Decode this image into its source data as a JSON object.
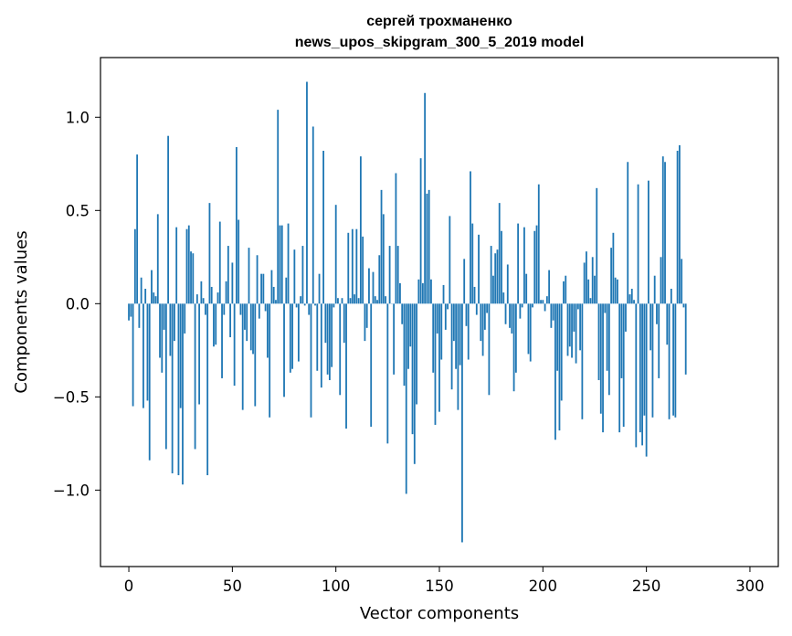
{
  "chart_data": {
    "type": "bar",
    "title_line1": "сергей трохманенко",
    "title_line2": "news_upos_skipgram_300_5_2019 model",
    "xlabel": "Vector components",
    "ylabel": "Components values",
    "xlim": [
      -13.7,
      313.7
    ],
    "ylim": [
      -1.41,
      1.32
    ],
    "x_ticks": [
      0,
      50,
      100,
      150,
      200,
      250,
      300
    ],
    "x_tick_labels": [
      "0",
      "50",
      "100",
      "150",
      "200",
      "250",
      "300"
    ],
    "y_ticks": [
      -1.0,
      -0.5,
      0.0,
      0.5,
      1.0
    ],
    "y_tick_labels": [
      "−1.0",
      "−0.5",
      "0.0",
      "0.5",
      "1.0"
    ],
    "bar_color": "#1f77b4",
    "grid": false,
    "legend": "none",
    "x_start": 0,
    "values": [
      -0.09,
      -0.07,
      -0.55,
      0.4,
      0.8,
      -0.13,
      0.14,
      -0.56,
      0.08,
      -0.52,
      -0.84,
      0.18,
      0.06,
      0.04,
      0.48,
      -0.29,
      -0.37,
      -0.14,
      -0.78,
      0.9,
      -0.28,
      -0.91,
      -0.2,
      0.41,
      -0.92,
      -0.56,
      -0.97,
      -0.16,
      0.4,
      0.42,
      0.28,
      0.27,
      -0.78,
      0.05,
      -0.54,
      0.12,
      0.03,
      -0.06,
      -0.92,
      0.54,
      0.09,
      -0.23,
      -0.22,
      0.06,
      0.44,
      -0.4,
      -0.06,
      0.12,
      0.31,
      -0.18,
      0.22,
      -0.44,
      0.84,
      0.45,
      -0.06,
      -0.57,
      -0.14,
      -0.2,
      0.3,
      -0.25,
      -0.27,
      -0.55,
      0.26,
      -0.08,
      0.16,
      0.16,
      -0.04,
      -0.29,
      -0.61,
      0.18,
      0.09,
      0.02,
      1.04,
      0.42,
      0.42,
      -0.5,
      0.14,
      0.43,
      -0.37,
      -0.35,
      0.29,
      -0.02,
      -0.31,
      0.04,
      0.31,
      -0.01,
      1.19,
      -0.06,
      -0.61,
      0.95,
      -0.01,
      -0.36,
      0.16,
      -0.45,
      0.82,
      -0.21,
      -0.38,
      -0.41,
      -0.34,
      -0.02,
      0.53,
      0.03,
      -0.49,
      0.03,
      -0.21,
      -0.67,
      0.38,
      0.03,
      0.4,
      0.05,
      0.4,
      0.03,
      0.79,
      0.36,
      -0.2,
      -0.13,
      0.19,
      -0.66,
      0.17,
      0.04,
      0.02,
      0.26,
      0.61,
      0.48,
      0.04,
      -0.75,
      0.31,
      0.0,
      -0.38,
      0.7,
      0.31,
      0.11,
      -0.11,
      -0.44,
      -1.02,
      -0.35,
      -0.23,
      -0.7,
      -0.86,
      -0.54,
      0.13,
      0.78,
      0.11,
      1.13,
      0.59,
      0.61,
      0.13,
      -0.37,
      -0.65,
      -0.16,
      -0.58,
      -0.3,
      0.1,
      -0.14,
      -0.03,
      0.47,
      -0.46,
      -0.2,
      -0.35,
      -0.57,
      -0.33,
      -1.28,
      0.24,
      -0.12,
      -0.3,
      0.71,
      0.43,
      0.09,
      -0.06,
      0.37,
      -0.2,
      -0.28,
      -0.14,
      -0.05,
      -0.49,
      0.31,
      0.15,
      0.27,
      0.29,
      0.54,
      0.39,
      0.06,
      -0.11,
      0.21,
      -0.13,
      -0.16,
      -0.47,
      -0.37,
      0.43,
      -0.08,
      -0.02,
      0.41,
      0.16,
      -0.27,
      -0.31,
      -0.02,
      0.39,
      0.42,
      0.64,
      0.02,
      0.02,
      -0.04,
      0.04,
      0.18,
      -0.13,
      -0.09,
      -0.73,
      -0.36,
      -0.68,
      -0.52,
      0.12,
      0.15,
      -0.28,
      -0.23,
      -0.29,
      -0.15,
      -0.32,
      -0.03,
      -0.25,
      -0.62,
      0.22,
      0.28,
      0.13,
      0.03,
      0.25,
      0.15,
      0.62,
      -0.41,
      -0.59,
      -0.69,
      -0.05,
      -0.36,
      -0.49,
      0.3,
      0.38,
      0.14,
      0.13,
      -0.69,
      -0.4,
      -0.66,
      -0.15,
      0.76,
      0.05,
      0.08,
      0.02,
      -0.77,
      0.64,
      -0.69,
      -0.76,
      -0.6,
      -0.82,
      0.66,
      -0.25,
      -0.61,
      0.15,
      -0.11,
      -0.4,
      0.25,
      0.79,
      0.76,
      -0.22,
      -0.62,
      0.08,
      -0.6,
      -0.61,
      0.82,
      0.85,
      0.24,
      -0.02,
      -0.38
    ]
  }
}
